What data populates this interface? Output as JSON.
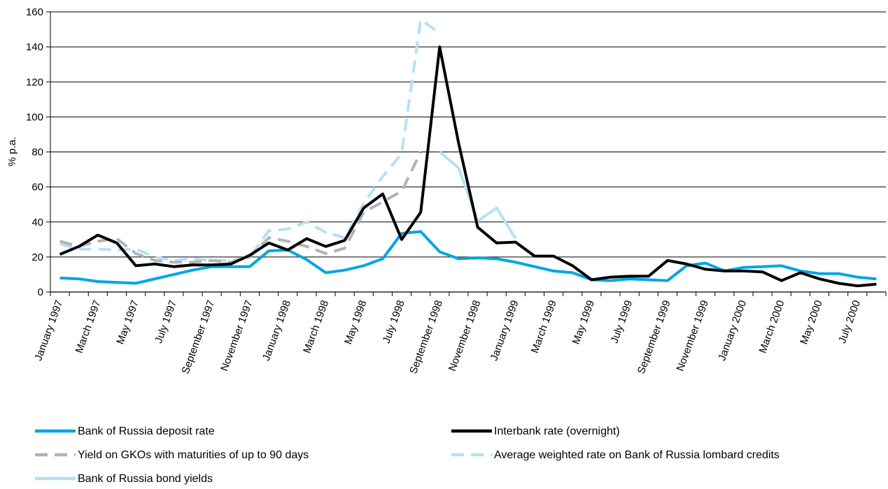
{
  "chart_data": {
    "type": "line",
    "ylabel": "% p.a.",
    "xlabel": "",
    "ylim": [
      0,
      160
    ],
    "yticks": [
      0,
      20,
      40,
      60,
      80,
      100,
      120,
      140,
      160
    ],
    "grid": "horizontal",
    "legend_position": "bottom",
    "categories": [
      "January 1997",
      "February 1997",
      "March 1997",
      "April 1997",
      "May 1997",
      "June 1997",
      "July 1997",
      "August 1997",
      "September 1997",
      "October 1997",
      "November 1997",
      "December 1997",
      "January 1998",
      "February 1998",
      "March 1998",
      "April 1998",
      "May 1998",
      "June 1998",
      "July 1998",
      "August 1998",
      "September 1998",
      "October 1998",
      "November 1998",
      "December 1998",
      "January 1999",
      "February 1999",
      "March 1999",
      "April 1999",
      "May 1999",
      "June 1999",
      "July 1999",
      "August 1999",
      "September 1999",
      "October 1999",
      "November 1999",
      "December 1999",
      "January 2000",
      "February 2000",
      "March 2000",
      "April 2000",
      "May 2000",
      "June 2000",
      "July 2000",
      "August 2000"
    ],
    "tick_labels": [
      "January 1997",
      "March 1997",
      "May 1997",
      "July 1997",
      "September 1997",
      "November 1997",
      "January 1998",
      "March 1998",
      "May 1998",
      "July 1998",
      "September 1998",
      "November 1998",
      "January 1999",
      "March 1999",
      "May 1999",
      "July 1999",
      "September 1999",
      "November 1999",
      "January 2000",
      "March 2000",
      "May 2000",
      "July 2000"
    ],
    "series": [
      {
        "name": "Bank of Russia deposit rate",
        "color": "#00a6e2",
        "dash": "solid",
        "width": 4,
        "values": [
          8,
          7.5,
          6,
          5.5,
          5,
          7.5,
          10,
          12.5,
          14.5,
          14.5,
          14.5,
          23.5,
          24,
          18.5,
          11,
          12.5,
          15,
          19,
          33.5,
          34.5,
          23,
          19,
          19.5,
          19,
          17,
          14.5,
          12,
          11,
          7,
          6.5,
          7.5,
          7,
          6.5,
          15,
          16.5,
          12,
          14,
          14.5,
          15,
          12,
          10.5,
          10.5,
          8.5,
          7.5
        ]
      },
      {
        "name": "Interbank rate (overnight)",
        "color": "#000000",
        "dash": "solid",
        "width": 4,
        "values": [
          21.5,
          26,
          32.5,
          28,
          15,
          16,
          14.5,
          15.5,
          15.5,
          16,
          21,
          28,
          24,
          30.5,
          26,
          29.5,
          48,
          56,
          30,
          45.5,
          140,
          85,
          37,
          28,
          28.5,
          20.5,
          20.5,
          15,
          7,
          8.5,
          9,
          9,
          18,
          16,
          13,
          12,
          12,
          11.5,
          6.5,
          11,
          7.5,
          5,
          3.5,
          4.5
        ]
      },
      {
        "name": "Yield on GKOs with maturities of up to 90 days",
        "color": "#b3b3b3",
        "dash": "dashed",
        "width": 4,
        "values": [
          29,
          26,
          29,
          30.5,
          22,
          18,
          17,
          17,
          18,
          17,
          20,
          31,
          29,
          26,
          22,
          25,
          45.5,
          51.5,
          57.5,
          80,
          null,
          null,
          null,
          null,
          null,
          null,
          null,
          null,
          null,
          null,
          null,
          null,
          null,
          null,
          null,
          null,
          null,
          null,
          null,
          null,
          null,
          null,
          null,
          null
        ]
      },
      {
        "name": "Average weighted rate on Bank of Russia lombard credits",
        "color": "#b6e0f5",
        "dash": "dashed",
        "width": 4,
        "values": [
          27.5,
          24.5,
          24.5,
          24,
          24.5,
          20,
          18,
          19,
          18,
          18,
          20,
          35,
          36,
          40,
          34,
          31,
          50.5,
          66,
          79,
          155.5,
          148,
          null,
          null,
          null,
          null,
          null,
          null,
          null,
          null,
          null,
          null,
          null,
          null,
          null,
          null,
          null,
          null,
          null,
          null,
          null,
          null,
          null,
          null,
          null
        ]
      },
      {
        "name": "Bank of Russia bond yields",
        "color": "#b6e0f5",
        "dash": "solid",
        "width": 4,
        "values": [
          null,
          null,
          null,
          null,
          null,
          null,
          null,
          null,
          null,
          null,
          null,
          null,
          null,
          null,
          null,
          null,
          null,
          null,
          null,
          null,
          80,
          71,
          40.5,
          48,
          30.5,
          null,
          null,
          null,
          null,
          null,
          null,
          null,
          null,
          null,
          null,
          null,
          null,
          null,
          null,
          null,
          null,
          null,
          null,
          null
        ]
      }
    ]
  }
}
